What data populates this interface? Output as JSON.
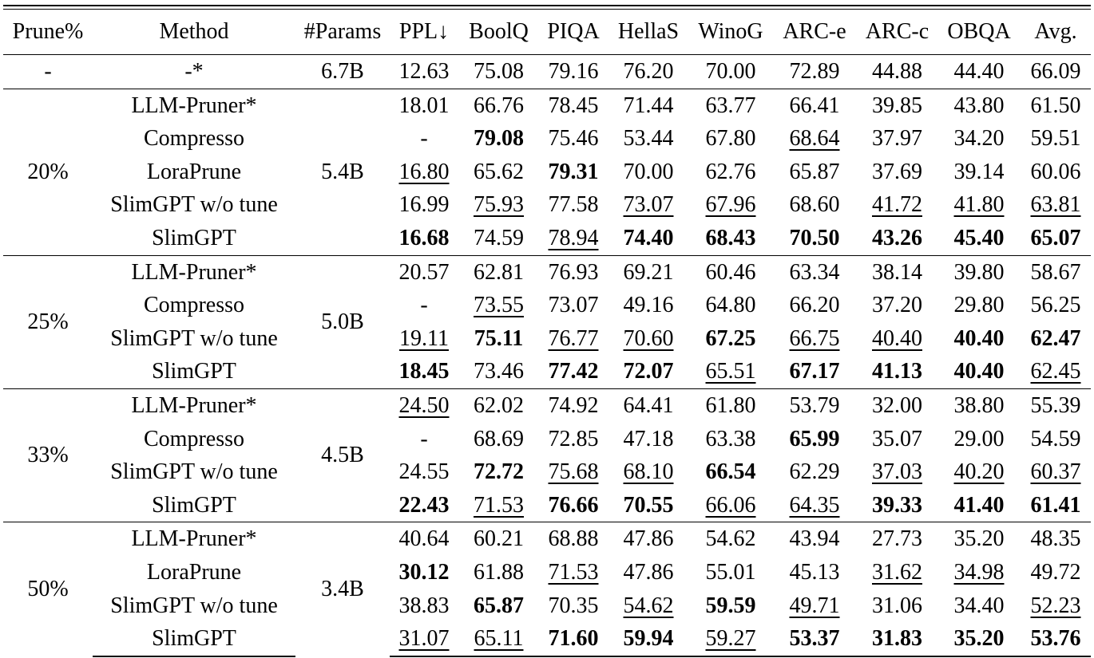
{
  "table": {
    "headers": [
      "Prune%",
      "Method",
      "#Params",
      "PPL↓",
      "BoolQ",
      "PIQA",
      "HellaS",
      "WinoG",
      "ARC-e",
      "ARC-c",
      "OBQA",
      "Avg."
    ],
    "baseline": {
      "prune": "-",
      "method": "-*",
      "params": "6.7B",
      "cells": [
        {
          "v": "12.63"
        },
        {
          "v": "75.08"
        },
        {
          "v": "79.16"
        },
        {
          "v": "76.20"
        },
        {
          "v": "70.00"
        },
        {
          "v": "72.89"
        },
        {
          "v": "44.88"
        },
        {
          "v": "44.40"
        },
        {
          "v": "66.09"
        }
      ]
    },
    "groups": [
      {
        "prune": "20%",
        "params": "5.4B",
        "rows": [
          {
            "method": "LLM-Pruner*",
            "cells": [
              {
                "v": "18.01"
              },
              {
                "v": "66.76"
              },
              {
                "v": "78.45"
              },
              {
                "v": "71.44"
              },
              {
                "v": "63.77"
              },
              {
                "v": "66.41"
              },
              {
                "v": "39.85"
              },
              {
                "v": "43.80"
              },
              {
                "v": "61.50"
              }
            ]
          },
          {
            "method": "Compresso",
            "cells": [
              {
                "v": "-"
              },
              {
                "v": "79.08",
                "s": "b"
              },
              {
                "v": "75.46"
              },
              {
                "v": "53.44"
              },
              {
                "v": "67.80"
              },
              {
                "v": "68.64",
                "s": "u"
              },
              {
                "v": "37.97"
              },
              {
                "v": "34.20"
              },
              {
                "v": "59.51"
              }
            ]
          },
          {
            "method": "LoraPrune",
            "cells": [
              {
                "v": "16.80",
                "s": "u"
              },
              {
                "v": "65.62"
              },
              {
                "v": "79.31",
                "s": "b"
              },
              {
                "v": "70.00"
              },
              {
                "v": "62.76"
              },
              {
                "v": "65.87"
              },
              {
                "v": "37.69"
              },
              {
                "v": "39.14"
              },
              {
                "v": "60.06"
              }
            ]
          },
          {
            "method": "SlimGPT w/o tune",
            "cells": [
              {
                "v": "16.99"
              },
              {
                "v": "75.93",
                "s": "u"
              },
              {
                "v": "77.58"
              },
              {
                "v": "73.07",
                "s": "u"
              },
              {
                "v": "67.96",
                "s": "u"
              },
              {
                "v": "68.60"
              },
              {
                "v": "41.72",
                "s": "u"
              },
              {
                "v": "41.80",
                "s": "u"
              },
              {
                "v": "63.81",
                "s": "u"
              }
            ]
          },
          {
            "method": "SlimGPT",
            "cells": [
              {
                "v": "16.68",
                "s": "b"
              },
              {
                "v": "74.59"
              },
              {
                "v": "78.94",
                "s": "u"
              },
              {
                "v": "74.40",
                "s": "b"
              },
              {
                "v": "68.43",
                "s": "b"
              },
              {
                "v": "70.50",
                "s": "b"
              },
              {
                "v": "43.26",
                "s": "b"
              },
              {
                "v": "45.40",
                "s": "b"
              },
              {
                "v": "65.07",
                "s": "b"
              }
            ]
          }
        ]
      },
      {
        "prune": "25%",
        "params": "5.0B",
        "rows": [
          {
            "method": "LLM-Pruner*",
            "cells": [
              {
                "v": "20.57"
              },
              {
                "v": "62.81"
              },
              {
                "v": "76.93"
              },
              {
                "v": "69.21"
              },
              {
                "v": "60.46"
              },
              {
                "v": "63.34"
              },
              {
                "v": "38.14"
              },
              {
                "v": "39.80"
              },
              {
                "v": "58.67"
              }
            ]
          },
          {
            "method": "Compresso",
            "cells": [
              {
                "v": "-"
              },
              {
                "v": "73.55",
                "s": "u"
              },
              {
                "v": "73.07"
              },
              {
                "v": "49.16"
              },
              {
                "v": "64.80"
              },
              {
                "v": "66.20"
              },
              {
                "v": "37.20"
              },
              {
                "v": "29.80"
              },
              {
                "v": "56.25"
              }
            ]
          },
          {
            "method": "SlimGPT w/o tune",
            "cells": [
              {
                "v": "19.11",
                "s": "u"
              },
              {
                "v": "75.11",
                "s": "b"
              },
              {
                "v": "76.77",
                "s": "u"
              },
              {
                "v": "70.60",
                "s": "u"
              },
              {
                "v": "67.25",
                "s": "b"
              },
              {
                "v": "66.75",
                "s": "u"
              },
              {
                "v": "40.40",
                "s": "u"
              },
              {
                "v": "40.40",
                "s": "b"
              },
              {
                "v": "62.47",
                "s": "b"
              }
            ]
          },
          {
            "method": "SlimGPT",
            "cells": [
              {
                "v": "18.45",
                "s": "b"
              },
              {
                "v": "73.46"
              },
              {
                "v": "77.42",
                "s": "b"
              },
              {
                "v": "72.07",
                "s": "b"
              },
              {
                "v": "65.51",
                "s": "u"
              },
              {
                "v": "67.17",
                "s": "b"
              },
              {
                "v": "41.13",
                "s": "b"
              },
              {
                "v": "40.40",
                "s": "b"
              },
              {
                "v": "62.45",
                "s": "u"
              }
            ]
          }
        ]
      },
      {
        "prune": "33%",
        "params": "4.5B",
        "rows": [
          {
            "method": "LLM-Pruner*",
            "cells": [
              {
                "v": "24.50",
                "s": "u"
              },
              {
                "v": "62.02"
              },
              {
                "v": "74.92"
              },
              {
                "v": "64.41"
              },
              {
                "v": "61.80"
              },
              {
                "v": "53.79"
              },
              {
                "v": "32.00"
              },
              {
                "v": "38.80"
              },
              {
                "v": "55.39"
              }
            ]
          },
          {
            "method": "Compresso",
            "cells": [
              {
                "v": "-"
              },
              {
                "v": "68.69"
              },
              {
                "v": "72.85"
              },
              {
                "v": "47.18"
              },
              {
                "v": "63.38"
              },
              {
                "v": "65.99",
                "s": "b"
              },
              {
                "v": "35.07"
              },
              {
                "v": "29.00"
              },
              {
                "v": "54.59"
              }
            ]
          },
          {
            "method": "SlimGPT w/o tune",
            "cells": [
              {
                "v": "24.55"
              },
              {
                "v": "72.72",
                "s": "b"
              },
              {
                "v": "75.68",
                "s": "u"
              },
              {
                "v": "68.10",
                "s": "u"
              },
              {
                "v": "66.54",
                "s": "b"
              },
              {
                "v": "62.29"
              },
              {
                "v": "37.03",
                "s": "u"
              },
              {
                "v": "40.20",
                "s": "u"
              },
              {
                "v": "60.37",
                "s": "u"
              }
            ]
          },
          {
            "method": "SlimGPT",
            "cells": [
              {
                "v": "22.43",
                "s": "b"
              },
              {
                "v": "71.53",
                "s": "u"
              },
              {
                "v": "76.66",
                "s": "b"
              },
              {
                "v": "70.55",
                "s": "b"
              },
              {
                "v": "66.06",
                "s": "u"
              },
              {
                "v": "64.35",
                "s": "u"
              },
              {
                "v": "39.33",
                "s": "b"
              },
              {
                "v": "41.40",
                "s": "b"
              },
              {
                "v": "61.41",
                "s": "b"
              }
            ]
          }
        ]
      },
      {
        "prune": "50%",
        "params": "3.4B",
        "rows": [
          {
            "method": "LLM-Pruner*",
            "cells": [
              {
                "v": "40.64"
              },
              {
                "v": "60.21"
              },
              {
                "v": "68.88"
              },
              {
                "v": "47.86"
              },
              {
                "v": "54.62"
              },
              {
                "v": "43.94"
              },
              {
                "v": "27.73"
              },
              {
                "v": "35.20"
              },
              {
                "v": "48.35"
              }
            ]
          },
          {
            "method": "LoraPrune",
            "cells": [
              {
                "v": "30.12",
                "s": "b"
              },
              {
                "v": "61.88"
              },
              {
                "v": "71.53",
                "s": "u"
              },
              {
                "v": "47.86"
              },
              {
                "v": "55.01"
              },
              {
                "v": "45.13"
              },
              {
                "v": "31.62",
                "s": "u"
              },
              {
                "v": "34.98",
                "s": "u"
              },
              {
                "v": "49.72"
              }
            ]
          },
          {
            "method": "SlimGPT w/o tune",
            "cells": [
              {
                "v": "38.83"
              },
              {
                "v": "65.87",
                "s": "b"
              },
              {
                "v": "70.35"
              },
              {
                "v": "54.62",
                "s": "u"
              },
              {
                "v": "59.59",
                "s": "b"
              },
              {
                "v": "49.71",
                "s": "u"
              },
              {
                "v": "31.06"
              },
              {
                "v": "34.40"
              },
              {
                "v": "52.23",
                "s": "u"
              }
            ]
          },
          {
            "method": "SlimGPT",
            "cells": [
              {
                "v": "31.07",
                "s": "u"
              },
              {
                "v": "65.11",
                "s": "u"
              },
              {
                "v": "71.60",
                "s": "b"
              },
              {
                "v": "59.94",
                "s": "b"
              },
              {
                "v": "59.27",
                "s": "u"
              },
              {
                "v": "53.37",
                "s": "b"
              },
              {
                "v": "31.83",
                "s": "b"
              },
              {
                "v": "35.20",
                "s": "b"
              },
              {
                "v": "53.76",
                "s": "b"
              }
            ]
          }
        ]
      }
    ]
  }
}
